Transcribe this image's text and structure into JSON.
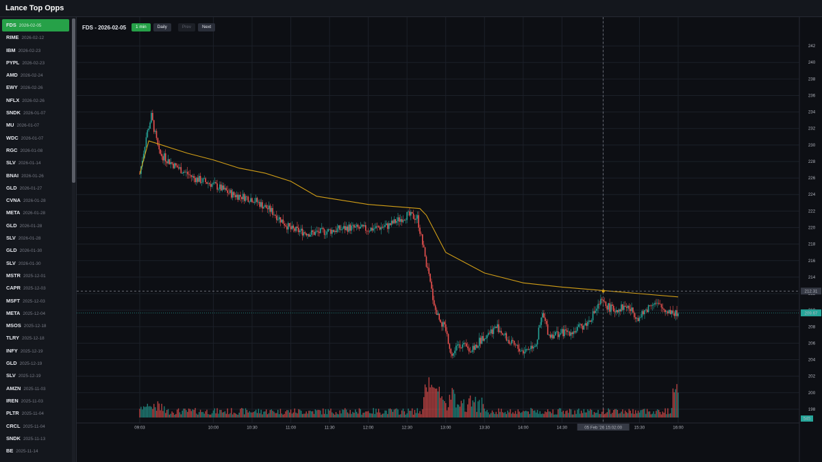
{
  "app": {
    "title": "Lance Top Opps"
  },
  "sidebar": {
    "items": [
      {
        "symbol": "FDS",
        "date": "2026-02-05",
        "active": true
      },
      {
        "symbol": "RIME",
        "date": "2026-02-12"
      },
      {
        "symbol": "IBM",
        "date": "2026-02-23"
      },
      {
        "symbol": "PYPL",
        "date": "2026-02-23"
      },
      {
        "symbol": "AMD",
        "date": "2026-02-24"
      },
      {
        "symbol": "EWY",
        "date": "2026-02-26"
      },
      {
        "symbol": "NFLX",
        "date": "2026-02-26"
      },
      {
        "symbol": "SNDK",
        "date": "2026-01-07"
      },
      {
        "symbol": "MU",
        "date": "2026-01-07"
      },
      {
        "symbol": "WDC",
        "date": "2026-01-07"
      },
      {
        "symbol": "RGC",
        "date": "2026-01-08"
      },
      {
        "symbol": "SLV",
        "date": "2026-01-14"
      },
      {
        "symbol": "BNAI",
        "date": "2026-01-26"
      },
      {
        "symbol": "GLD",
        "date": "2026-01-27"
      },
      {
        "symbol": "CVNA",
        "date": "2026-01-28"
      },
      {
        "symbol": "META",
        "date": "2026-01-28"
      },
      {
        "symbol": "GLD",
        "date": "2026-01-28"
      },
      {
        "symbol": "SLV",
        "date": "2026-01-28"
      },
      {
        "symbol": "GLD",
        "date": "2026-01-30"
      },
      {
        "symbol": "SLV",
        "date": "2026-01-30"
      },
      {
        "symbol": "MSTR",
        "date": "2025-12-01"
      },
      {
        "symbol": "CAPR",
        "date": "2025-12-03"
      },
      {
        "symbol": "MSFT",
        "date": "2025-12-03"
      },
      {
        "symbol": "META",
        "date": "2025-12-04"
      },
      {
        "symbol": "MSOS",
        "date": "2025-12-18"
      },
      {
        "symbol": "TLRY",
        "date": "2025-12-18"
      },
      {
        "symbol": "INFY",
        "date": "2025-12-19"
      },
      {
        "symbol": "GLD",
        "date": "2025-12-19"
      },
      {
        "symbol": "SLV",
        "date": "2025-12-19"
      },
      {
        "symbol": "AMZN",
        "date": "2025-11-03"
      },
      {
        "symbol": "IREN",
        "date": "2025-11-03"
      },
      {
        "symbol": "PLTR",
        "date": "2025-11-04"
      },
      {
        "symbol": "CRCL",
        "date": "2025-11-04"
      },
      {
        "symbol": "SNDK",
        "date": "2025-11-13"
      },
      {
        "symbol": "BE",
        "date": "2025-11-14"
      }
    ]
  },
  "toolbar": {
    "chart_title": "FDS - 2026-02-05",
    "btn_1min": "1 min",
    "btn_daily": "Daily",
    "btn_prev": "Prev",
    "btn_next": "Next"
  },
  "colors": {
    "up": "#26a69a",
    "down": "#ef5350",
    "vwap": "#d4a017",
    "accent": "#26a148"
  },
  "chart_data": {
    "type": "candlestick",
    "yticks": [
      198,
      200,
      202,
      204,
      206,
      208,
      210,
      212,
      214,
      216,
      218,
      220,
      222,
      224,
      226,
      228,
      230,
      232,
      234,
      236,
      238,
      240,
      242
    ],
    "ylim": [
      197,
      243
    ],
    "xticks": [
      "09:03",
      "10:00",
      "10:30",
      "11:00",
      "11:30",
      "12:00",
      "12:30",
      "13:00",
      "13:30",
      "14:00",
      "14:30",
      "05 Feb '26  15:02:00",
      "15:30",
      "16:00"
    ],
    "crosshair_price": "212.31",
    "last_price": "209.67",
    "volume_label": "545",
    "vwap_path": [
      [
        "09:03",
        226.5
      ],
      [
        "09:10",
        230.5
      ],
      [
        "09:20",
        230.0
      ],
      [
        "09:40",
        229.0
      ],
      [
        "10:00",
        228.2
      ],
      [
        "10:20",
        227.2
      ],
      [
        "10:40",
        226.6
      ],
      [
        "11:00",
        225.6
      ],
      [
        "11:20",
        223.8
      ],
      [
        "12:00",
        222.8
      ],
      [
        "12:40",
        222.3
      ],
      [
        "12:45",
        221.5
      ],
      [
        "13:00",
        217.0
      ],
      [
        "13:30",
        214.5
      ],
      [
        "14:00",
        213.3
      ],
      [
        "14:30",
        212.8
      ],
      [
        "15:00",
        212.4
      ],
      [
        "15:30",
        212.0
      ],
      [
        "16:00",
        211.6
      ]
    ],
    "price_path": [
      [
        "09:03",
        226.5
      ],
      [
        "09:08",
        231.0
      ],
      [
        "09:12",
        233.5
      ],
      [
        "09:18",
        229.0
      ],
      [
        "09:30",
        227.5
      ],
      [
        "09:45",
        226.0
      ],
      [
        "10:00",
        225.2
      ],
      [
        "10:15",
        224.0
      ],
      [
        "10:30",
        223.5
      ],
      [
        "10:45",
        222.0
      ],
      [
        "11:00",
        219.8
      ],
      [
        "11:15",
        219.3
      ],
      [
        "11:30",
        219.6
      ],
      [
        "11:45",
        220.0
      ],
      [
        "12:00",
        219.8
      ],
      [
        "12:15",
        220.2
      ],
      [
        "12:30",
        221.5
      ],
      [
        "12:38",
        221.2
      ],
      [
        "12:42",
        218.0
      ],
      [
        "12:47",
        214.0
      ],
      [
        "12:52",
        210.0
      ],
      [
        "13:00",
        207.5
      ],
      [
        "13:05",
        204.5
      ],
      [
        "13:10",
        206.0
      ],
      [
        "13:20",
        205.0
      ],
      [
        "13:30",
        207.0
      ],
      [
        "13:40",
        208.0
      ],
      [
        "13:50",
        206.0
      ],
      [
        "14:00",
        205.0
      ],
      [
        "14:10",
        206.0
      ],
      [
        "14:15",
        209.5
      ],
      [
        "14:20",
        207.0
      ],
      [
        "14:40",
        207.5
      ],
      [
        "14:50",
        208.5
      ],
      [
        "15:00",
        211.0
      ],
      [
        "15:10",
        210.0
      ],
      [
        "15:20",
        210.5
      ],
      [
        "15:30",
        209.0
      ],
      [
        "15:40",
        211.0
      ],
      [
        "15:50",
        210.0
      ],
      [
        "16:00",
        209.7
      ]
    ],
    "volume_spikes": [
      [
        "12:45",
        0.45
      ],
      [
        "12:50",
        0.4
      ],
      [
        "12:55",
        0.34
      ],
      [
        "13:05",
        0.3
      ],
      [
        "13:20",
        0.25
      ],
      [
        "15:58",
        0.55
      ]
    ]
  }
}
